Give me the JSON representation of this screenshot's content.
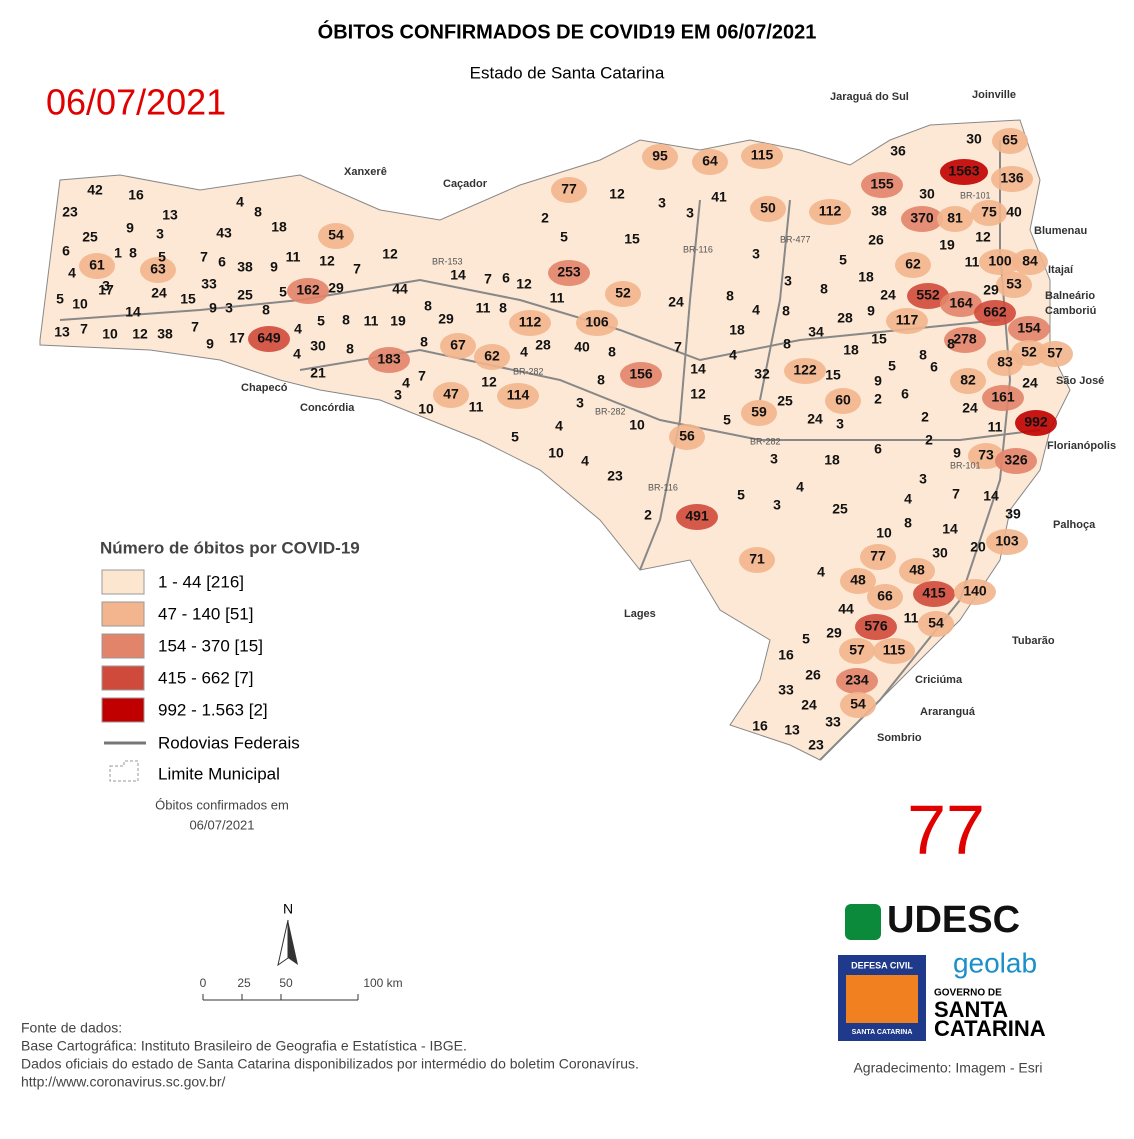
{
  "header": {
    "title": "ÓBITOS CONFIRMADOS DE COVID19 EM 06/07/2021",
    "subtitle": "Estado de Santa Catarina",
    "date_stamp": "06/07/2021"
  },
  "map": {
    "municipality_deaths": [
      42,
      16,
      23,
      13,
      4,
      8,
      9,
      25,
      3,
      43,
      18,
      6,
      1,
      8,
      5,
      7,
      6,
      38,
      9,
      11,
      12,
      7,
      54,
      12,
      61,
      63,
      4,
      3,
      24,
      33,
      162,
      29,
      44,
      14,
      5,
      10,
      17,
      14,
      15,
      9,
      3,
      25,
      5,
      7,
      6,
      12,
      13,
      7,
      10,
      12,
      38,
      7,
      9,
      17,
      649,
      8,
      4,
      5,
      8,
      11,
      19,
      8,
      29,
      11,
      8,
      112,
      52,
      11,
      106,
      30,
      8,
      4,
      21,
      183,
      8,
      67,
      62,
      4,
      28,
      40,
      8,
      7,
      4,
      3,
      10,
      47,
      12,
      11,
      114,
      8,
      156,
      5,
      4,
      3,
      10,
      4,
      23,
      10,
      2,
      56,
      491,
      12,
      14,
      7,
      4,
      18,
      8,
      24,
      15,
      3,
      3,
      41,
      12,
      2,
      5,
      253,
      77,
      95,
      64,
      115,
      50,
      3,
      3,
      4,
      8,
      34,
      8,
      28,
      122,
      32,
      15,
      18,
      59,
      25,
      24,
      60,
      3,
      5,
      3,
      18,
      6,
      5,
      3,
      4,
      25,
      10,
      8,
      77,
      48,
      66,
      4,
      44,
      30,
      48,
      415,
      140,
      11,
      54,
      576,
      57,
      115,
      29,
      5,
      16,
      26,
      33,
      234,
      54,
      24,
      33,
      16,
      13,
      23,
      112,
      38,
      26,
      5,
      18,
      24,
      9,
      15,
      8,
      36,
      155,
      1563,
      30,
      65,
      136,
      30,
      370,
      81,
      75,
      40,
      12,
      19,
      62,
      100,
      84,
      11,
      552,
      164,
      29,
      53,
      117,
      662,
      154,
      278,
      8,
      8,
      5,
      6,
      83,
      52,
      57,
      82,
      9,
      2,
      6,
      24,
      161,
      2,
      24,
      992,
      11,
      9,
      73,
      326,
      2,
      3,
      4,
      7,
      14,
      39,
      14,
      20,
      103,
      71
    ],
    "places": [
      "Jaraguá do Sul",
      "Joinville",
      "Blumenau",
      "Itajaí",
      "Balneário",
      "Camboriú",
      "São José",
      "Florianópolis",
      "Palhoça",
      "Tubarão",
      "Criciúma",
      "Araranguá",
      "Sombrio",
      "Lages",
      "Chapecó",
      "Concórdia",
      "Xanxerê",
      "Caçador"
    ],
    "road_labels": [
      "BR-153",
      "BR-116",
      "BR-477",
      "BR-101",
      "BR-282",
      "BR-282",
      "BR-282",
      "BR-116",
      "BR-101"
    ]
  },
  "legend": {
    "title": "Número de óbitos por COVID-19",
    "classes": [
      {
        "label": "1 - 44  [216]",
        "color": "#fde6d0",
        "range": [
          1,
          44
        ]
      },
      {
        "label": "47 - 140  [51]",
        "color": "#f2b58d",
        "range": [
          47,
          140
        ]
      },
      {
        "label": "154 - 370  [15]",
        "color": "#e2846a",
        "range": [
          154,
          370
        ]
      },
      {
        "label": "415 - 662  [7]",
        "color": "#d04a3b",
        "range": [
          415,
          662
        ]
      },
      {
        "label": "992 - 1.563  [2]",
        "color": "#c00000",
        "range": [
          992,
          1563
        ]
      }
    ],
    "roads": "Rodovias Federais",
    "limit": "Limite Municipal",
    "note": [
      "Óbitos confirmados em",
      "06/07/2021"
    ]
  },
  "scale": {
    "north": "N",
    "labels": [
      "0",
      "25",
      "50",
      "100 km"
    ]
  },
  "page_number": "77",
  "logos": {
    "udesc": "UDESC",
    "geolab": "geolab",
    "defesa": "DEFESA CIVIL",
    "defesa_sub": "SANTA CATARINA",
    "gov1": "GOVERNO DE",
    "gov2": "SANTA",
    "gov3": "CATARINA"
  },
  "credits": "Agradecimento: Imagem - Esri",
  "footer": [
    "Fonte de dados:",
    "Base Cartográfica: Instituto Brasileiro de Geografia e Estatística - IBGE.",
    "Dados oficiais do estado de Santa Catarina disponibilizados por intermédio do boletim Coronavírus.",
    "http://www.coronavirus.sc.gov.br/"
  ]
}
